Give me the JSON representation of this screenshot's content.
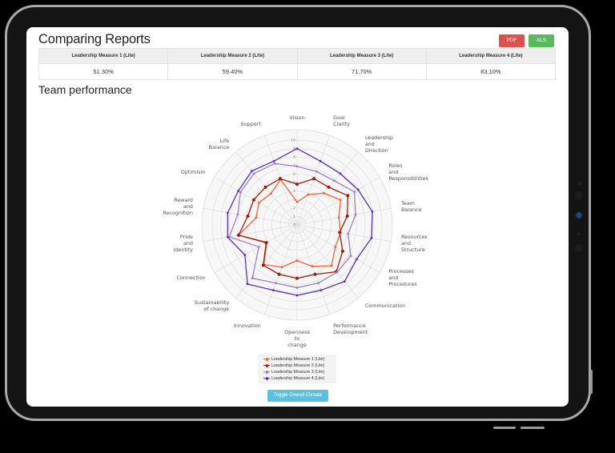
{
  "header": {
    "title": "Comparing Reports",
    "pdf_label": "PDF",
    "xls_label": "XLS",
    "download_icon": "download-circle-icon"
  },
  "summary_table": {
    "headers": [
      "Leadership Measure 1 (Lite)",
      "Leadership Measure 2 (Lite)",
      "Leadership Measure 3 (Lite)",
      "Leadership Measure 4 (Lite)"
    ],
    "values": [
      "51.30%",
      "59.40%",
      "71.70%",
      "83.10%"
    ]
  },
  "section": {
    "title": "Team performance"
  },
  "legend": {
    "items": [
      "Leadership Measure 1 (Lite)",
      "Leadership Measure 2 (Lite)",
      "Leadership Measure 3 (Lite)",
      "Leadership Measure 4 (Lite)"
    ]
  },
  "toggle_button": {
    "label": "Toggle Overall Climate"
  },
  "chart_data": {
    "type": "radar",
    "title": "Team performance",
    "rlim": [
      0,
      10
    ],
    "r_ticks": [
      0,
      1,
      2,
      3,
      4,
      5,
      6,
      7,
      8,
      9,
      10
    ],
    "grid": true,
    "legend_position": "bottom",
    "categories": [
      "Vision",
      "Goal Clarity",
      "Leadership and Direction",
      "Roles and Responsibilities",
      "Team Balance",
      "Resources and Structure",
      "Processes and Procedures",
      "Communication",
      "Performance Development",
      "Openness to change",
      "Innovation",
      "Sustainability of change",
      "Connection",
      "Pride and Identity",
      "Reward and Recognition",
      "Optimism",
      "Life Balance",
      "Support"
    ],
    "category_lines": [
      [
        "Vision"
      ],
      [
        "Goal",
        "Clarity"
      ],
      [
        "Leadership",
        "and",
        "Direction"
      ],
      [
        "Roles",
        "and",
        "Responsibilities"
      ],
      [
        "Team",
        "Balance"
      ],
      [
        "Resources",
        "and",
        "Structure"
      ],
      [
        "Processes",
        "and",
        "Procedures"
      ],
      [
        "Communication"
      ],
      [
        "Performance",
        "Development"
      ],
      [
        "Openness",
        "to",
        "change"
      ],
      [
        "Innovation"
      ],
      [
        "Sustainability",
        "of change"
      ],
      [
        "Connection"
      ],
      [
        "Pride",
        "and",
        "Identity"
      ],
      [
        "Reward",
        "and",
        "Recognition"
      ],
      [
        "Optimism"
      ],
      [
        "Life",
        "Balance"
      ],
      [
        "Support"
      ]
    ],
    "series": [
      {
        "name": "Leadership Measure 1 (Lite)",
        "color": "#f0643c",
        "values": [
          2.7,
          3.8,
          4.9,
          5.9,
          5.0,
          5.2,
          5.2,
          6.3,
          5.2,
          4.2,
          5.3,
          6.1,
          4.1,
          7.0,
          4.9,
          5.2,
          4.8,
          5.7
        ]
      },
      {
        "name": "Leadership Measure 2 (Lite)",
        "color": "#9b1c12",
        "values": [
          4.8,
          5.8,
          5.8,
          6.9,
          6.0,
          5.1,
          6.2,
          7.2,
          6.2,
          6.3,
          6.2,
          6.2,
          4.2,
          7.0,
          5.9,
          5.9,
          5.8,
          5.8
        ]
      },
      {
        "name": "Leadership Measure 3 (Lite)",
        "color": "#9b7fc8",
        "values": [
          6.9,
          6.7,
          6.8,
          7.8,
          7.0,
          6.1,
          7.3,
          7.3,
          7.3,
          7.4,
          7.3,
          8.2,
          5.2,
          8.1,
          7.1,
          7.7,
          7.9,
          7.7
        ]
      },
      {
        "name": "Leadership Measure 4 (Lite)",
        "color": "#5b2fb5",
        "values": [
          9.0,
          8.0,
          7.9,
          8.3,
          9.0,
          8.9,
          8.1,
          8.7,
          8.2,
          8.3,
          8.2,
          9.1,
          7.1,
          8.3,
          8.3,
          8.0,
          8.3,
          8.0
        ]
      }
    ]
  }
}
